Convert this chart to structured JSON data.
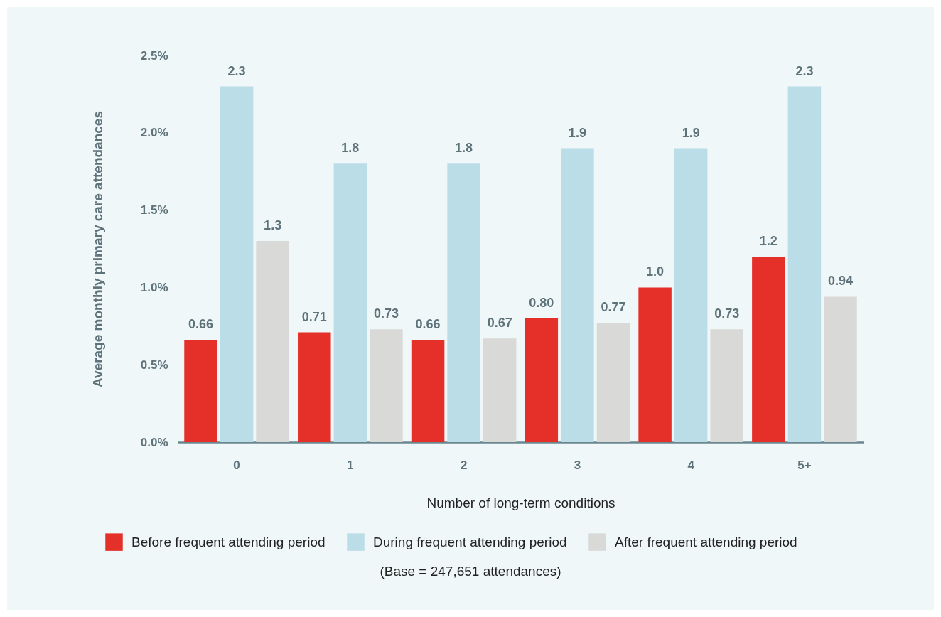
{
  "chart_data": {
    "type": "bar",
    "xlabel": "Number of long-term conditions",
    "ylabel": "Average monthly primary care attendances",
    "categories": [
      "0",
      "1",
      "2",
      "3",
      "4",
      "5+"
    ],
    "series": [
      {
        "name": "Before frequent attending period",
        "color": "#e52f29",
        "values": [
          0.66,
          0.71,
          0.66,
          0.8,
          1.0,
          1.2
        ],
        "value_labels": [
          "0.66",
          "0.71",
          "0.66",
          "0.80",
          "1.0",
          "1.2"
        ]
      },
      {
        "name": "During frequent attending period",
        "color": "#badde8",
        "values": [
          2.3,
          1.8,
          1.8,
          1.9,
          1.9,
          2.3
        ],
        "value_labels": [
          "2.3",
          "1.8",
          "1.8",
          "1.9",
          "1.9",
          "2.3"
        ]
      },
      {
        "name": "After frequent attending period",
        "color": "#d9d9d7",
        "values": [
          1.3,
          0.73,
          0.67,
          0.77,
          0.73,
          0.94
        ],
        "value_labels": [
          "1.3",
          "0.73",
          "0.67",
          "0.77",
          "0.73",
          "0.94"
        ]
      }
    ],
    "ylim": [
      0,
      2.5
    ],
    "yticks": [
      {
        "value": 0,
        "label": "0.0%"
      },
      {
        "value": 0.5,
        "label": "0.5%"
      },
      {
        "value": 1,
        "label": "1.0%"
      },
      {
        "value": 1.5,
        "label": "1.5%"
      },
      {
        "value": 2,
        "label": "2.0%"
      },
      {
        "value": 2.5,
        "label": "2.5%"
      }
    ],
    "legend": "bottom",
    "annotations": [
      "(Base = 247,651 attendances)"
    ]
  }
}
